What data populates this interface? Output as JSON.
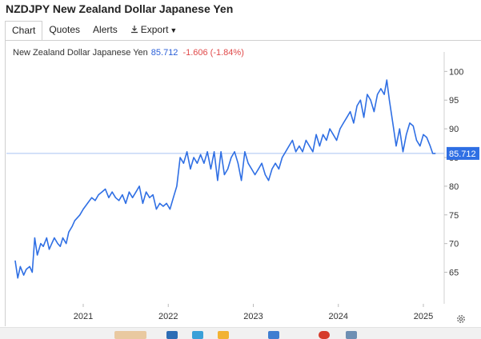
{
  "header": {
    "title": "NZDJPY New Zealand Dollar Japanese Yen"
  },
  "tabs": [
    {
      "label": "Chart",
      "active": true
    },
    {
      "label": "Quotes",
      "active": false
    },
    {
      "label": "Alerts",
      "active": false
    },
    {
      "label": "Export",
      "active": false
    }
  ],
  "legend": {
    "name": "New Zealand Dollar Japanese Yen",
    "last": "85.712",
    "change": "-1.606 (-1.84%)"
  },
  "icons": {
    "export": "download-icon",
    "settings": "gear-icon"
  },
  "colors": {
    "line": "#2f6fe4",
    "change_negative": "#e04848",
    "last_value_label": "#2f6fe4"
  },
  "chart_data": {
    "type": "line",
    "title": "",
    "xlabel": "",
    "ylabel": "",
    "ylim": [
      59.5,
      102
    ],
    "y_ticks": [
      "65",
      "70",
      "75",
      "80",
      "85",
      "90",
      "95",
      "100"
    ],
    "x_ticks": [
      "2021",
      "2022",
      "2023",
      "2024",
      "2025"
    ],
    "last_value_label": "85.712",
    "last_value": 85.712,
    "grid": false,
    "series": [
      {
        "name": "New Zealand Dollar Japanese Yen",
        "x": [
          2020.2,
          2020.23,
          2020.26,
          2020.3,
          2020.33,
          2020.37,
          2020.4,
          2020.43,
          2020.46,
          2020.48,
          2020.5,
          2020.53,
          2020.57,
          2020.6,
          2020.63,
          2020.66,
          2020.7,
          2020.73,
          2020.76,
          2020.8,
          2020.83,
          2020.87,
          2020.9,
          2020.93,
          2020.96,
          2021.0,
          2021.05,
          2021.1,
          2021.14,
          2021.18,
          2021.22,
          2021.26,
          2021.3,
          2021.34,
          2021.38,
          2021.42,
          2021.46,
          2021.5,
          2021.54,
          2021.58,
          2021.62,
          2021.66,
          2021.7,
          2021.74,
          2021.78,
          2021.82,
          2021.86,
          2021.9,
          2021.94,
          2021.98,
          2022.02,
          2022.06,
          2022.1,
          2022.14,
          2022.18,
          2022.22,
          2022.26,
          2022.3,
          2022.34,
          2022.38,
          2022.42,
          2022.46,
          2022.5,
          2022.54,
          2022.58,
          2022.62,
          2022.66,
          2022.7,
          2022.74,
          2022.78,
          2022.82,
          2022.86,
          2022.9,
          2022.94,
          2022.98,
          2023.02,
          2023.06,
          2023.1,
          2023.14,
          2023.18,
          2023.22,
          2023.26,
          2023.3,
          2023.34,
          2023.38,
          2023.42,
          2023.46,
          2023.5,
          2023.54,
          2023.58,
          2023.62,
          2023.66,
          2023.7,
          2023.74,
          2023.78,
          2023.82,
          2023.86,
          2023.9,
          2023.94,
          2023.98,
          2024.02,
          2024.06,
          2024.1,
          2024.14,
          2024.18,
          2024.22,
          2024.26,
          2024.3,
          2024.34,
          2024.38,
          2024.42,
          2024.46,
          2024.5,
          2024.54,
          2024.57,
          2024.6,
          2024.64,
          2024.68,
          2024.72,
          2024.76,
          2024.8,
          2024.84,
          2024.88,
          2024.92,
          2024.96,
          2025.0,
          2025.04,
          2025.08,
          2025.11,
          2025.14
        ],
        "y": [
          67,
          64,
          66,
          64.5,
          65.5,
          66,
          65,
          71,
          68,
          69,
          70,
          69.5,
          71,
          69,
          70,
          71,
          70,
          69.5,
          71,
          70,
          72,
          73,
          74,
          74.5,
          75,
          76,
          77,
          78,
          77.5,
          78.5,
          79,
          79.5,
          78,
          79,
          78,
          77.5,
          78.5,
          77,
          79,
          78,
          79,
          80,
          77,
          79,
          78,
          78.5,
          76,
          77,
          76.5,
          77,
          76,
          78,
          80,
          85,
          84,
          86,
          83,
          85,
          84,
          85.5,
          84,
          86,
          83,
          86,
          81,
          86,
          82,
          83,
          85,
          86,
          84,
          81,
          86,
          84,
          83,
          82,
          83,
          84,
          82,
          81,
          83,
          84,
          83,
          85,
          86,
          87,
          88,
          86,
          87,
          86,
          88,
          87,
          86,
          89,
          87,
          89,
          88,
          90,
          89,
          88,
          90,
          91,
          92,
          93,
          91,
          94,
          95,
          92,
          96,
          95,
          93,
          96,
          97,
          96,
          98.5,
          95,
          91,
          87,
          90,
          86,
          89,
          91,
          90.5,
          88,
          87,
          89,
          88.5,
          87,
          85.7,
          85.712
        ]
      }
    ]
  }
}
